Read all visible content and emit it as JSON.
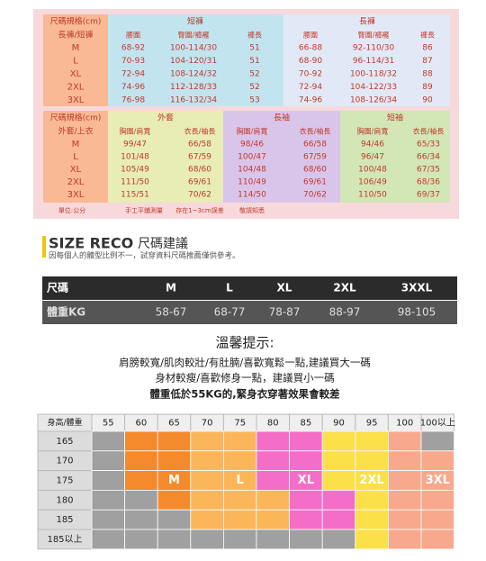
{
  "size_chart_bottoms": {
    "header": [
      "尺碼規格(cm)",
      "長褲/短褲"
    ],
    "groups": [
      {
        "name": "短褲",
        "columns": [
          "腰圍",
          "臀圍/褲襬",
          "褲長"
        ]
      },
      {
        "name": "長褲",
        "columns": [
          "腰圍",
          "臀圍/褲襬",
          "褲長"
        ]
      }
    ],
    "rows": [
      {
        "size": "M",
        "cells": [
          "68-92",
          "100-114/30",
          "51",
          "66-88",
          "92-110/30",
          "86"
        ]
      },
      {
        "size": "L",
        "cells": [
          "70-93",
          "104-120/31",
          "51",
          "68-90",
          "96-114/31",
          "87"
        ]
      },
      {
        "size": "XL",
        "cells": [
          "72-94",
          "108-124/32",
          "52",
          "70-92",
          "100-118/32",
          "88"
        ]
      },
      {
        "size": "2XL",
        "cells": [
          "74-96",
          "112-128/33",
          "52",
          "72-94",
          "104-122/33",
          "89"
        ]
      },
      {
        "size": "3XL",
        "cells": [
          "76-98",
          "116-132/34",
          "53",
          "74-96",
          "108-126/34",
          "90"
        ]
      }
    ]
  },
  "size_chart_tops": {
    "header": [
      "尺碼規格(cm)",
      "外套/上衣"
    ],
    "groups": [
      {
        "name": "外套",
        "columns": [
          "胸圍/肩寬",
          "衣長/袖長"
        ]
      },
      {
        "name": "長袖",
        "columns": [
          "胸圍/肩寬",
          "衣長/袖長"
        ]
      },
      {
        "name": "短袖",
        "columns": [
          "胸圍/肩寬",
          "衣長/袖長"
        ]
      }
    ],
    "rows": [
      {
        "size": "M",
        "cells": [
          "99/47",
          "66/58",
          "98/46",
          "66/58",
          "94/46",
          "65/33"
        ]
      },
      {
        "size": "L",
        "cells": [
          "101/48",
          "67/59",
          "100/47",
          "67/59",
          "96/47",
          "66/34"
        ]
      },
      {
        "size": "XL",
        "cells": [
          "105/49",
          "68/60",
          "104/48",
          "68/60",
          "100/48",
          "67/35"
        ]
      },
      {
        "size": "2XL",
        "cells": [
          "111/50",
          "69/61",
          "110/49",
          "69/61",
          "106/49",
          "68/36"
        ]
      },
      {
        "size": "3XL",
        "cells": [
          "115/51",
          "70/62",
          "114/50",
          "70/62",
          "110/50",
          "69/37"
        ]
      }
    ]
  },
  "notes": [
    "單位:公分",
    "手工平鋪測量",
    "存在1~3cm誤差",
    "敬請知悉"
  ],
  "reco": {
    "title_en": "SIZE RECO",
    "title_zh": "尺碼建議",
    "subtitle": "因每個人的體型比例不一，試穿資料尺碼推薦僅供參考。",
    "table": {
      "rows": [
        [
          "尺碼",
          "M",
          "L",
          "XL",
          "2XL",
          "3XXL"
        ],
        [
          "體重KG",
          "58-67",
          "68-77",
          "78-87",
          "88-97",
          "98-105"
        ]
      ]
    }
  },
  "tips": {
    "title": "溫馨提示:",
    "lines": [
      "肩膀較寬/肌肉較壯/有肚腩/喜歡寬鬆一點,建議買大一碼",
      "身材較瘦/喜歡修身一點，建議買小一碼",
      "體重低於55KG的,緊身衣穿著效果會較差"
    ]
  },
  "grid": {
    "corner": "身高/體重",
    "columns": [
      "55",
      "60",
      "65",
      "70",
      "75",
      "80",
      "85",
      "90",
      "95",
      "100",
      "100以上"
    ],
    "rows": [
      {
        "height": "165",
        "cells": [
          null,
          null,
          null,
          null,
          null,
          null,
          null,
          null,
          null,
          null,
          null
        ]
      },
      {
        "height": "170",
        "cells": [
          null,
          null,
          null,
          null,
          null,
          null,
          null,
          null,
          null,
          null,
          null
        ]
      },
      {
        "height": "175",
        "cells": [
          null,
          null,
          "M",
          null,
          "L",
          null,
          "XL",
          null,
          "2XL",
          null,
          "3XL"
        ]
      },
      {
        "height": "180",
        "cells": [
          null,
          null,
          null,
          null,
          null,
          null,
          null,
          null,
          null,
          null,
          null
        ]
      },
      {
        "height": "185",
        "cells": [
          null,
          null,
          null,
          null,
          null,
          null,
          null,
          null,
          null,
          null,
          null
        ]
      },
      {
        "height": "185以上",
        "cells": [
          null,
          null,
          null,
          null,
          null,
          null,
          null,
          null,
          null,
          null,
          null
        ]
      }
    ]
  }
}
